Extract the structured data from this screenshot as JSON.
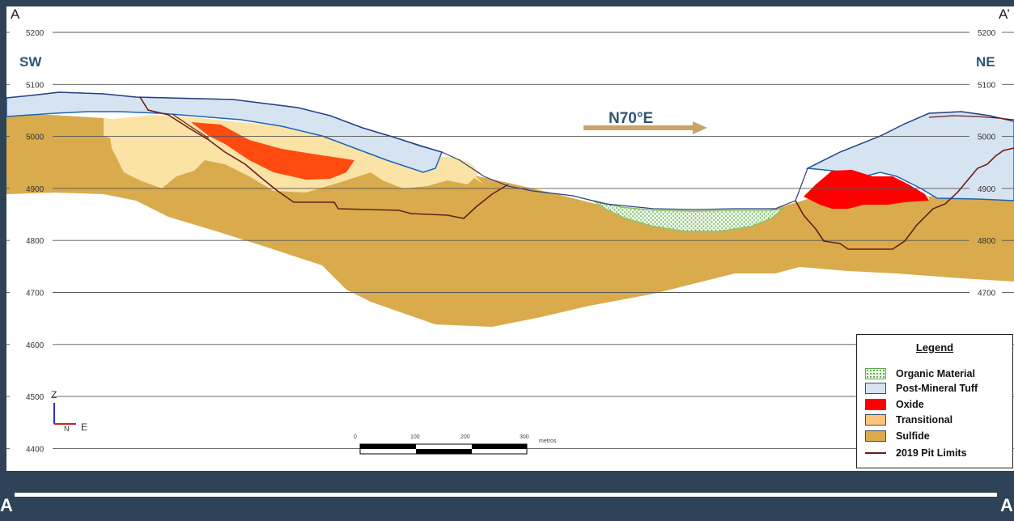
{
  "section": {
    "corner_left": "A",
    "corner_right": "A’",
    "direction_left": "SW",
    "direction_right": "NE",
    "bearing": "N70°E",
    "elevations": [
      "5200",
      "5100",
      "5000",
      "4900",
      "4800",
      "4700",
      "4600",
      "4500",
      "4400"
    ],
    "axis_z": "Z",
    "axis_n": "N",
    "axis_e": "E",
    "scale_ticks": [
      "0",
      "100",
      "200",
      "300"
    ],
    "scale_unit": "metros"
  },
  "legend": {
    "title": "Legend",
    "items": [
      {
        "label": "Organic Material",
        "color": "#9fd17f"
      },
      {
        "label": "Post-Mineral Tuff",
        "color": "#d6e4f2"
      },
      {
        "label": "Oxide",
        "color": "#ff0000"
      },
      {
        "label": "Transitional",
        "color": "#ffc379"
      },
      {
        "label": "Sulfide",
        "color": "#d9ab4c"
      },
      {
        "label": "2019 Pit Limits",
        "color": "#6b1c1c"
      }
    ]
  },
  "bottom": {
    "left_label": "A",
    "right_label": "A"
  },
  "colors": {
    "background": "#2e4357",
    "sulfide": "#d9ab4c",
    "transitional": "#fbe3a6",
    "oxide_red": "#ff0000",
    "oxide_orange": "#ff4a10",
    "tuff": "#d6e4f2",
    "tuff_outline": "#1d63b8",
    "organic": "#cfe8c2",
    "pit": "#6b1c1c",
    "arrow": "#c9a369"
  }
}
